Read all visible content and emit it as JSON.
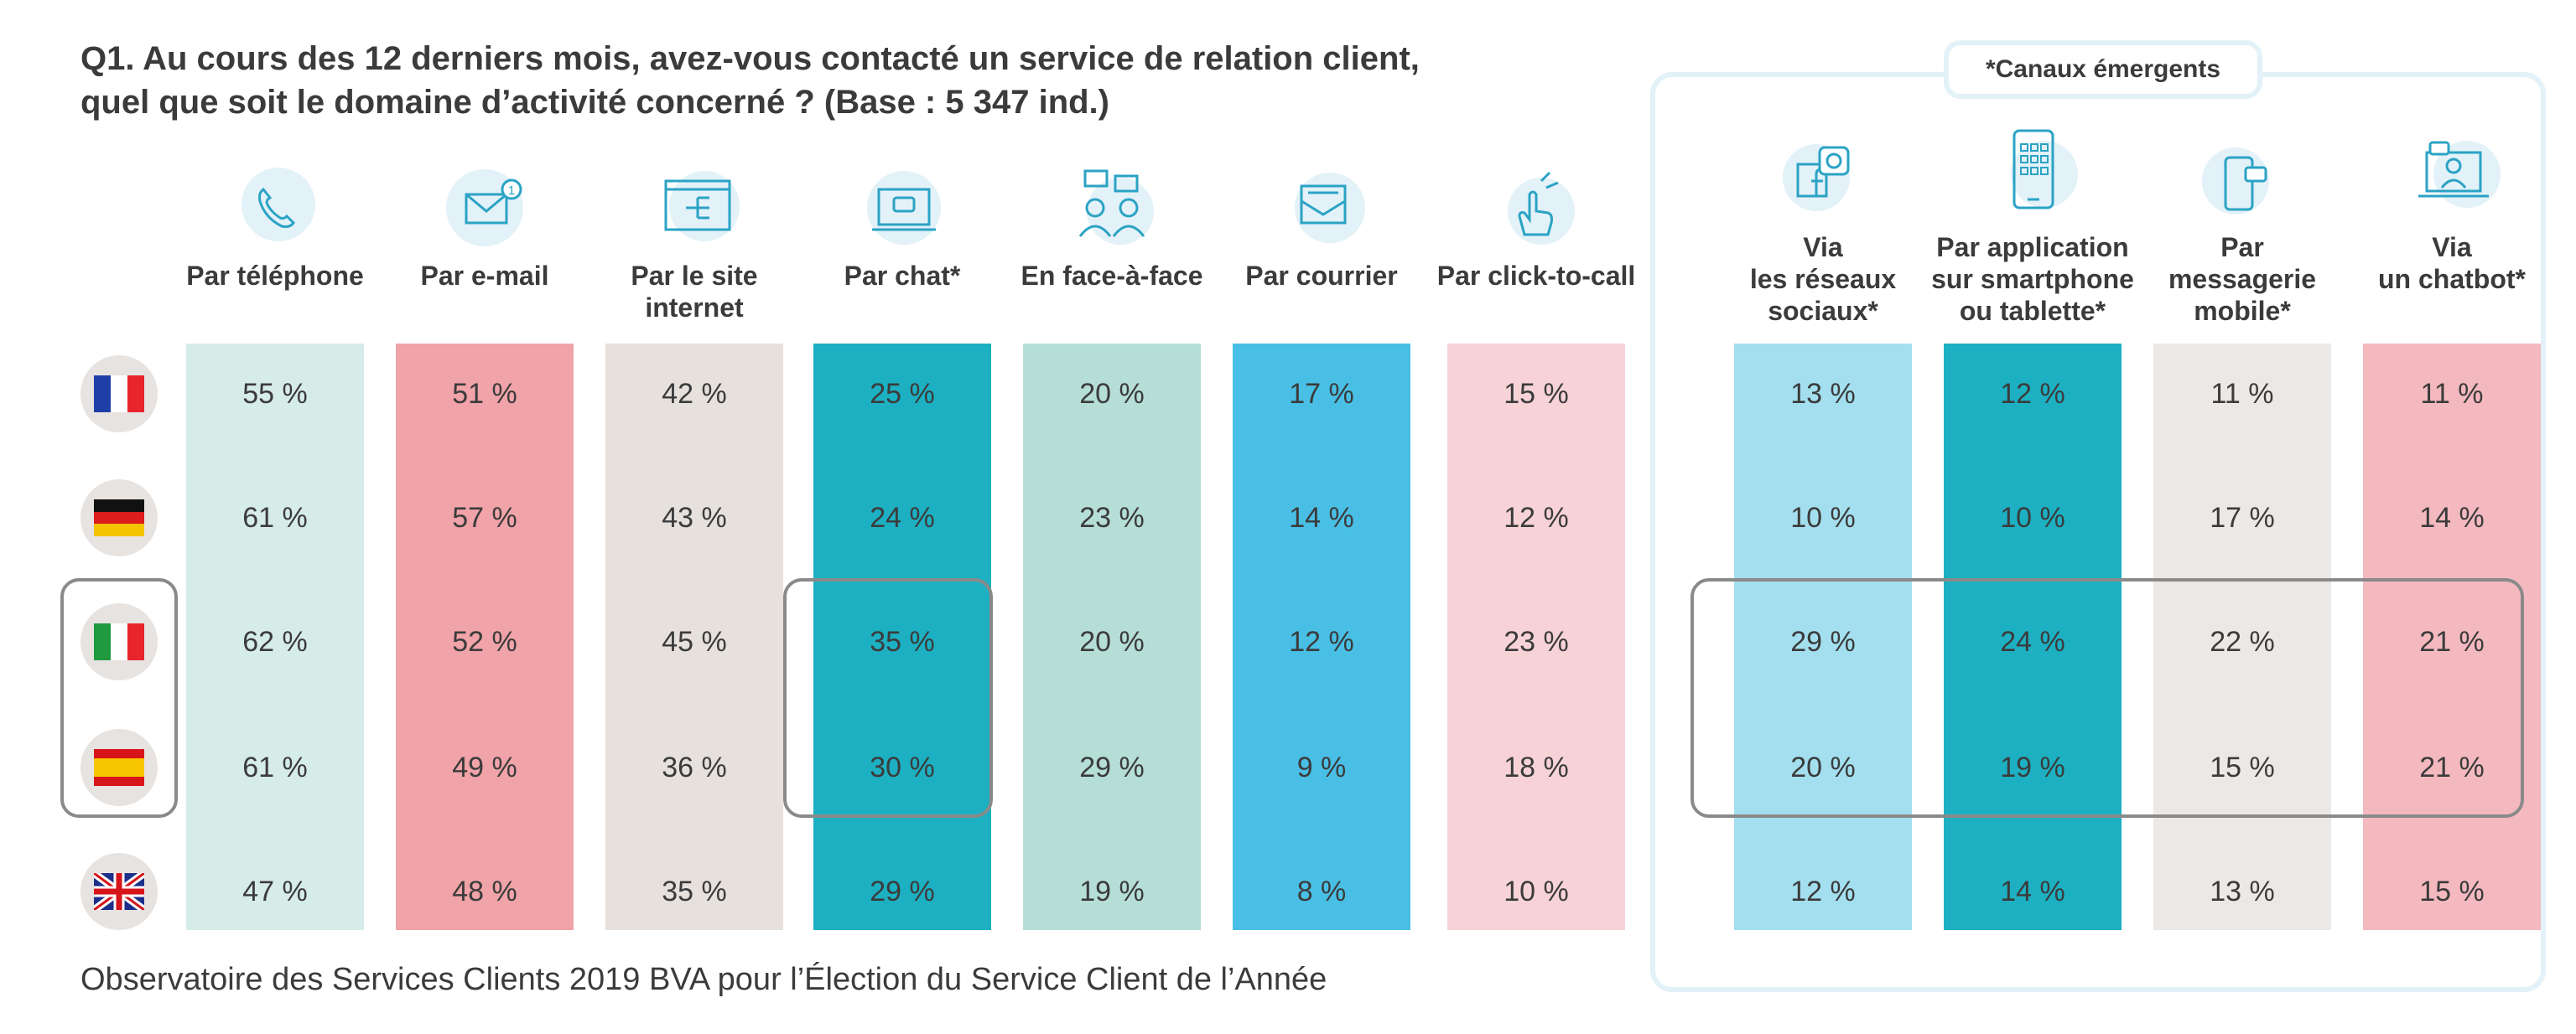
{
  "title_line1": "Q1. Au cours des 12 derniers mois, avez-vous contacté un service de relation client,",
  "title_line2": "quel que soit le domaine d’activité concerné ? (Base : 5 347 ind.)",
  "footer": "Observatoire des Services Clients 2019 BVA pour l’Élection du Service Client de l’Année",
  "emerging_label": "*Canaux émergents",
  "countries": [
    "France",
    "Allemagne",
    "Italie",
    "Espagne",
    "Royaume-Uni"
  ],
  "colors": {
    "telephone": "#d6ece8",
    "email": "#f0a3a8",
    "site": "#e6e1dc",
    "chat": "#1cb0c2",
    "face": "#b5ded6",
    "courrier": "#49bfe6",
    "click": "#f7d3d7",
    "reseaux": "#a3dfef",
    "appli": "#1cb0c2",
    "messagerie": "#ebe8e5",
    "chatbot": "#f4b9bf"
  },
  "chart_data": {
    "type": "table",
    "title": "Q1. Au cours des 12 derniers mois, avez-vous contacté un service de relation client, quel que soit le domaine d’activité concerné ? (Base : 5 347 ind.)",
    "rows": [
      "France",
      "Allemagne",
      "Italie",
      "Espagne",
      "Royaume-Uni"
    ],
    "columns": [
      {
        "key": "telephone",
        "label": "Par téléphone",
        "emerging": false,
        "values": [
          "55 %",
          "61 %",
          "62 %",
          "61 %",
          "47 %"
        ]
      },
      {
        "key": "email",
        "label": "Par e-mail",
        "emerging": false,
        "values": [
          "51 %",
          "57 %",
          "52 %",
          "49 %",
          "48 %"
        ]
      },
      {
        "key": "site",
        "label": "Par le site internet",
        "label_lines": [
          "Par le site",
          "internet"
        ],
        "emerging": false,
        "values": [
          "42 %",
          "43 %",
          "45 %",
          "36 %",
          "35 %"
        ]
      },
      {
        "key": "chat",
        "label": "Par chat*",
        "emerging": false,
        "values": [
          "25 %",
          "24 %",
          "35 %",
          "30 %",
          "29 %"
        ]
      },
      {
        "key": "face",
        "label": "En face-à-face",
        "emerging": false,
        "values": [
          "20 %",
          "23 %",
          "20 %",
          "29 %",
          "19 %"
        ]
      },
      {
        "key": "courrier",
        "label": "Par courrier",
        "emerging": false,
        "values": [
          "17 %",
          "14 %",
          "12 %",
          "9 %",
          "8 %"
        ]
      },
      {
        "key": "click",
        "label": "Par click-to-call",
        "emerging": false,
        "values": [
          "15 %",
          "12 %",
          "23 %",
          "18 %",
          "10 %"
        ]
      },
      {
        "key": "reseaux",
        "label": "Via les réseaux sociaux*",
        "label_lines": [
          "Via",
          "les réseaux",
          "sociaux*"
        ],
        "emerging": true,
        "values": [
          "13 %",
          "10 %",
          "29 %",
          "20 %",
          "12 %"
        ]
      },
      {
        "key": "appli",
        "label": "Par application sur smartphone ou tablette*",
        "label_lines": [
          "Par application",
          "sur smartphone",
          "ou tablette*"
        ],
        "emerging": true,
        "values": [
          "12 %",
          "10 %",
          "24 %",
          "19 %",
          "14 %"
        ]
      },
      {
        "key": "messagerie",
        "label": "Par messagerie mobile*",
        "label_lines": [
          "Par",
          "messagerie",
          "mobile*"
        ],
        "emerging": true,
        "values": [
          "11 %",
          "17 %",
          "22 %",
          "15 %",
          "13 %"
        ]
      },
      {
        "key": "chatbot",
        "label": "Via un chatbot*",
        "label_lines": [
          "Via",
          "un chatbot*"
        ],
        "emerging": true,
        "values": [
          "11 %",
          "14 %",
          "21 %",
          "21 %",
          "15 %"
        ]
      }
    ],
    "highlighted_rows": [
      "Italie",
      "Espagne"
    ],
    "highlighted_columns": [
      "chat"
    ]
  }
}
